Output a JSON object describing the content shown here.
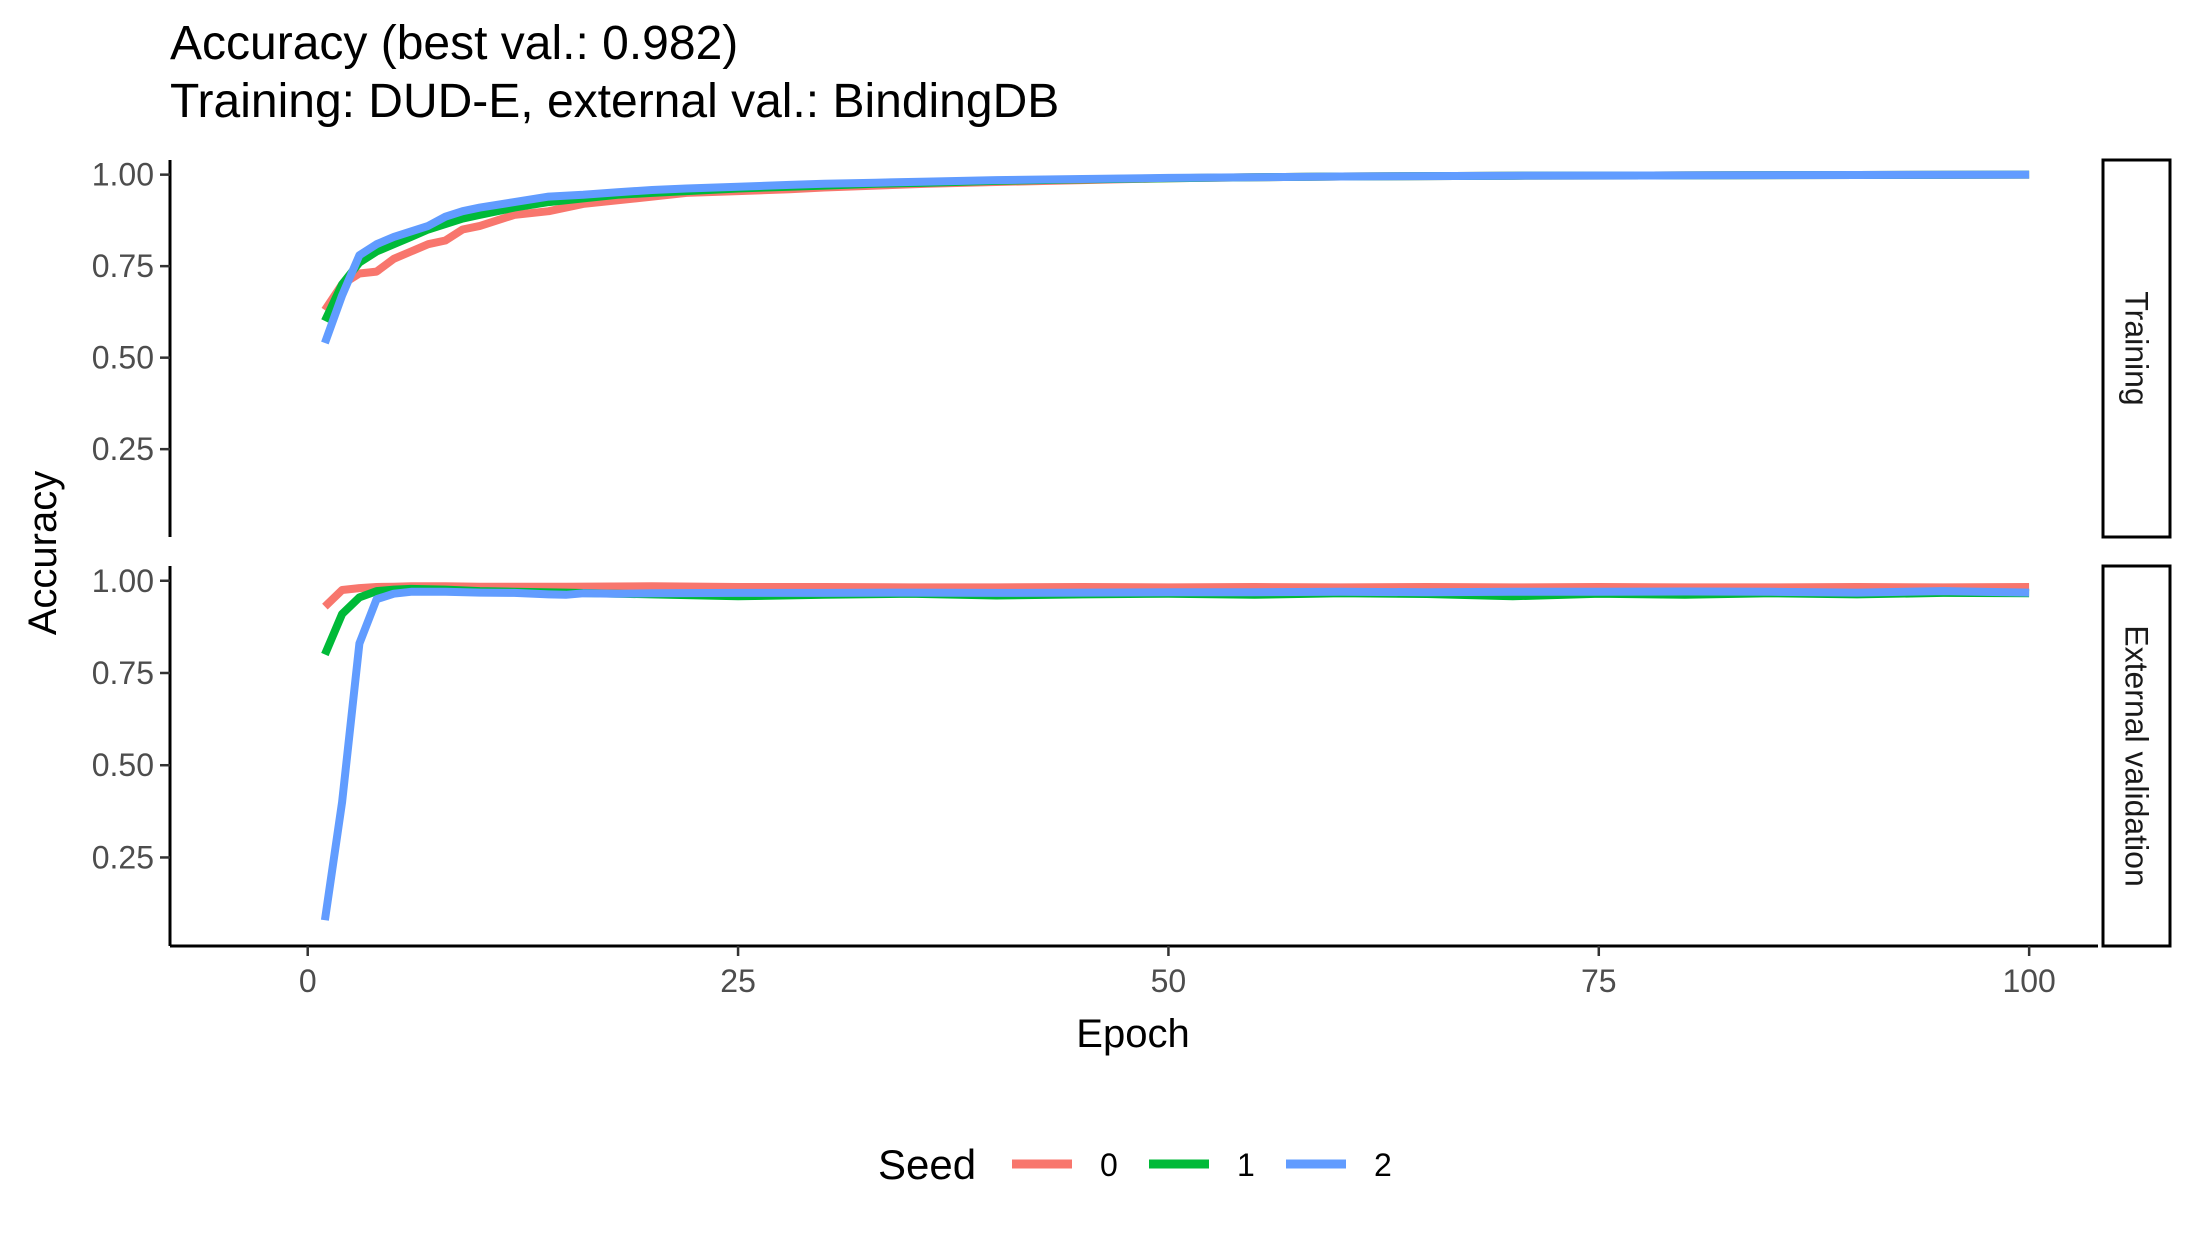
{
  "header": {
    "title": "Accuracy (best val.: 0.982)",
    "subtitle": "Training: DUD-E, external val.: BindingDB"
  },
  "chart_data": {
    "type": "line",
    "xlabel": "Epoch",
    "ylabel": "Accuracy",
    "xlim": [
      -8,
      104
    ],
    "ylim": [
      0.01,
      1.04
    ],
    "x_ticks": [
      0,
      25,
      50,
      75,
      100
    ],
    "x_tick_labels": [
      "0",
      "25",
      "50",
      "75",
      "100"
    ],
    "y_ticks": [
      0.25,
      0.5,
      0.75,
      1.0
    ],
    "y_tick_labels": [
      "0.25",
      "0.50",
      "0.75",
      "1.00"
    ],
    "grid": false,
    "legend": {
      "title": "Seed",
      "position": "bottom",
      "entries": [
        {
          "label": "0",
          "color": "#F8766D"
        },
        {
          "label": "1",
          "color": "#00BA38"
        },
        {
          "label": "2",
          "color": "#619CFF"
        }
      ]
    },
    "panels": [
      {
        "strip": "Training",
        "series": [
          {
            "name": "0",
            "color": "#F8766D",
            "x": [
              1,
              2,
              3,
              4,
              5,
              6,
              7,
              8,
              9,
              10,
              12,
              14,
              16,
              18,
              20,
              22,
              25,
              28,
              30,
              33,
              36,
              40,
              45,
              50,
              55,
              60,
              70,
              80,
              90,
              100
            ],
            "y": [
              0.63,
              0.7,
              0.73,
              0.735,
              0.77,
              0.79,
              0.81,
              0.82,
              0.85,
              0.86,
              0.89,
              0.9,
              0.92,
              0.93,
              0.94,
              0.95,
              0.955,
              0.96,
              0.965,
              0.97,
              0.975,
              0.98,
              0.985,
              0.99,
              0.993,
              0.995,
              0.997,
              0.998,
              0.999,
              1.0
            ]
          },
          {
            "name": "1",
            "color": "#00BA38",
            "x": [
              1,
              2,
              3,
              4,
              5,
              6,
              7,
              8,
              9,
              10,
              12,
              14,
              16,
              18,
              20,
              22,
              25,
              28,
              30,
              33,
              36,
              40,
              45,
              50,
              55,
              60,
              70,
              80,
              90,
              100
            ],
            "y": [
              0.6,
              0.7,
              0.76,
              0.79,
              0.81,
              0.83,
              0.85,
              0.865,
              0.88,
              0.89,
              0.91,
              0.925,
              0.935,
              0.945,
              0.95,
              0.955,
              0.962,
              0.967,
              0.97,
              0.975,
              0.978,
              0.983,
              0.987,
              0.99,
              0.993,
              0.995,
              0.997,
              0.998,
              0.999,
              1.0
            ]
          },
          {
            "name": "2",
            "color": "#619CFF",
            "x": [
              1,
              2,
              3,
              4,
              5,
              6,
              7,
              8,
              9,
              10,
              12,
              14,
              16,
              18,
              20,
              22,
              25,
              28,
              30,
              33,
              36,
              40,
              45,
              50,
              55,
              60,
              70,
              80,
              90,
              100
            ],
            "y": [
              0.54,
              0.67,
              0.78,
              0.81,
              0.83,
              0.845,
              0.86,
              0.885,
              0.9,
              0.91,
              0.925,
              0.94,
              0.945,
              0.952,
              0.958,
              0.962,
              0.967,
              0.972,
              0.975,
              0.978,
              0.981,
              0.985,
              0.988,
              0.991,
              0.993,
              0.995,
              0.997,
              0.998,
              0.999,
              1.0
            ]
          }
        ]
      },
      {
        "strip": "External validation",
        "series": [
          {
            "name": "0",
            "color": "#F8766D",
            "x": [
              1,
              2,
              3,
              4,
              5,
              6,
              8,
              10,
              15,
              20,
              25,
              30,
              35,
              40,
              45,
              50,
              55,
              60,
              65,
              70,
              75,
              80,
              85,
              90,
              95,
              100
            ],
            "y": [
              0.93,
              0.975,
              0.98,
              0.983,
              0.984,
              0.985,
              0.985,
              0.984,
              0.984,
              0.985,
              0.983,
              0.983,
              0.982,
              0.982,
              0.983,
              0.982,
              0.983,
              0.982,
              0.983,
              0.982,
              0.983,
              0.982,
              0.982,
              0.983,
              0.982,
              0.983
            ]
          },
          {
            "name": "1",
            "color": "#00BA38",
            "x": [
              1,
              2,
              3,
              4,
              5,
              6,
              8,
              10,
              15,
              20,
              25,
              30,
              35,
              40,
              45,
              50,
              55,
              60,
              65,
              70,
              75,
              80,
              85,
              90,
              95,
              100
            ],
            "y": [
              0.8,
              0.91,
              0.955,
              0.972,
              0.976,
              0.978,
              0.976,
              0.972,
              0.968,
              0.963,
              0.958,
              0.962,
              0.965,
              0.96,
              0.963,
              0.965,
              0.962,
              0.966,
              0.964,
              0.958,
              0.965,
              0.962,
              0.966,
              0.963,
              0.967,
              0.966
            ]
          },
          {
            "name": "2",
            "color": "#619CFF",
            "x": [
              1,
              2,
              3,
              4,
              5,
              6,
              8,
              10,
              12,
              14,
              15,
              16,
              18,
              20,
              25,
              30,
              35,
              40,
              45,
              50,
              55,
              60,
              65,
              70,
              75,
              80,
              85,
              90,
              95,
              100
            ],
            "y": [
              0.08,
              0.4,
              0.83,
              0.95,
              0.965,
              0.97,
              0.97,
              0.968,
              0.967,
              0.963,
              0.962,
              0.966,
              0.965,
              0.966,
              0.967,
              0.967,
              0.968,
              0.967,
              0.968,
              0.969,
              0.969,
              0.97,
              0.969,
              0.97,
              0.97,
              0.971,
              0.97,
              0.968,
              0.972,
              0.968
            ]
          }
        ]
      }
    ]
  }
}
